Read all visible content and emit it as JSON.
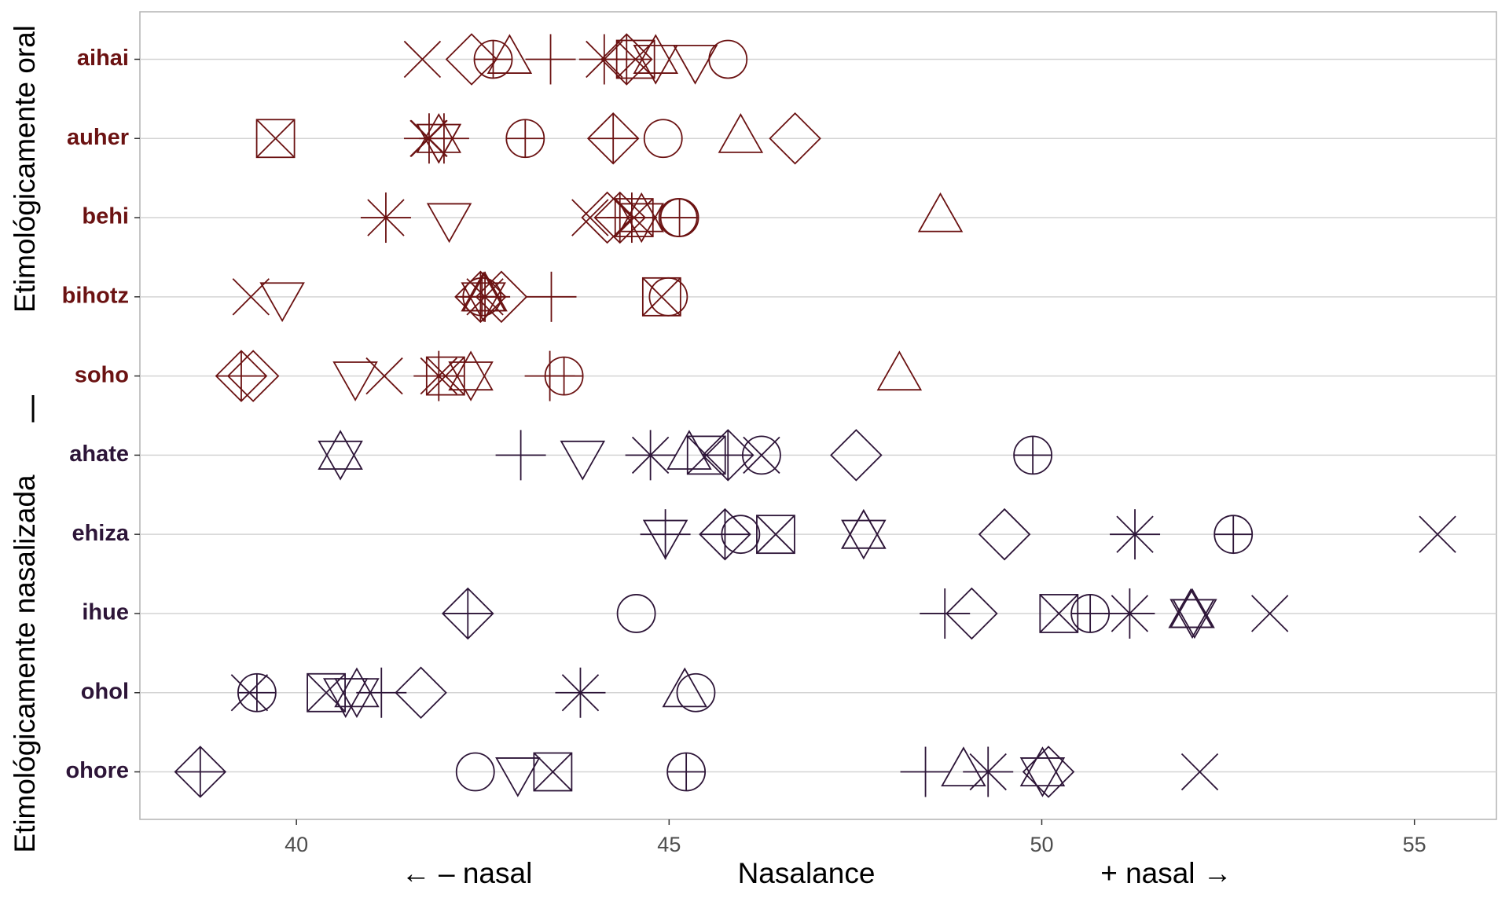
{
  "chart_data": {
    "type": "dotplot",
    "categories": [
      "aihai",
      "auher",
      "behi",
      "bihotz",
      "soho",
      "ahate",
      "ehiza",
      "ihue",
      "ohol",
      "ohore"
    ],
    "category_colors": [
      "#6b1212",
      "#6b1212",
      "#6b1212",
      "#6b1212",
      "#6b1212",
      "#2d1538",
      "#2d1538",
      "#2d1538",
      "#2d1538",
      "#2d1538"
    ],
    "xlabel": [
      "← – nasal",
      "Nasalance",
      "+ nasal →"
    ],
    "ylabel": [
      "Etimológicamente oral",
      "|",
      "Etimológicamente nasalizada"
    ],
    "xlim": [
      37.9,
      56.1
    ],
    "xticks": [
      40,
      45,
      50,
      55
    ],
    "grid": true,
    "series": [
      {
        "shape": "x",
        "values": [
          41.69,
          41.77,
          43.94,
          39.39,
          41.18,
          46.24,
          55.31,
          53.06,
          39.37,
          52.12
        ]
      },
      {
        "shape": "diamond",
        "values": [
          42.35,
          46.69,
          44.17,
          42.75,
          39.42,
          47.51,
          49.5,
          49.06,
          41.67,
          50.09
        ]
      },
      {
        "shape": "circle",
        "values": [
          45.79,
          44.92,
          45.12,
          44.99,
          null,
          46.24,
          45.96,
          44.56,
          45.36,
          42.4
        ]
      },
      {
        "shape": "triangle-up",
        "values": [
          42.86,
          45.96,
          48.64,
          42.53,
          48.09,
          45.27,
          47.61,
          52.0,
          45.21,
          48.95
        ]
      },
      {
        "shape": "plus",
        "values": [
          43.41,
          41.98,
          44.5,
          43.42,
          43.4,
          43.01,
          44.95,
          48.7,
          41.14,
          48.44
        ]
      },
      {
        "shape": "asterisk",
        "values": [
          44.13,
          41.78,
          41.2,
          42.53,
          41.91,
          44.75,
          51.25,
          51.18,
          43.81,
          49.28
        ]
      },
      {
        "shape": "square-cross",
        "values": [
          44.55,
          39.72,
          44.53,
          44.9,
          42.0,
          45.5,
          46.43,
          50.23,
          40.4,
          43.44
        ]
      },
      {
        "shape": "triangle-down",
        "values": [
          45.35,
          41.91,
          42.05,
          39.81,
          40.79,
          43.84,
          44.95,
          52.05,
          40.66,
          42.97
        ]
      },
      {
        "shape": "circle-plus",
        "values": [
          42.64,
          43.07,
          45.14,
          42.49,
          43.59,
          49.88,
          52.57,
          50.65,
          39.47,
          45.23
        ]
      },
      {
        "shape": "diamond-plus",
        "values": [
          44.43,
          44.25,
          44.34,
          42.47,
          39.26,
          45.79,
          45.75,
          42.3,
          null,
          38.71
        ]
      },
      {
        "shape": "star",
        "values": [
          44.82,
          41.91,
          44.63,
          42.51,
          42.34,
          40.59,
          47.61,
          52.02,
          40.81,
          50.01
        ]
      }
    ]
  }
}
